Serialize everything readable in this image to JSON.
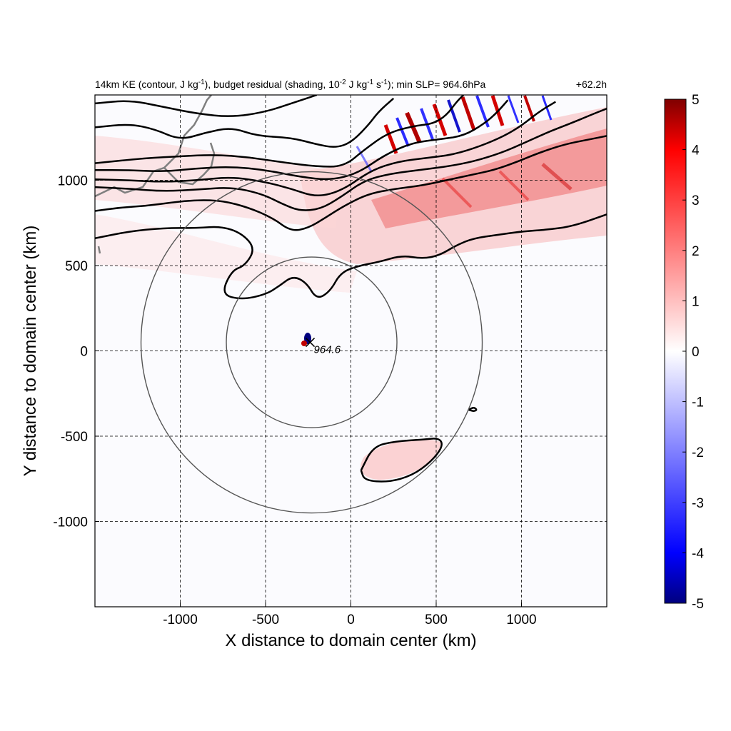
{
  "chart_data": {
    "type": "heatmap",
    "title": {
      "part1": "14km KE (contour, J kg",
      "part1_sup": "-1",
      "part2": "), budget residual (shading, 10",
      "part2_sup": "-2",
      "part3": " J kg",
      "part3_sup": "-1",
      "part4": " s",
      "part4_sup": "-1",
      "part5": "); min SLP= 964.6hPa"
    },
    "time_label": "+62.2h",
    "xlabel": "X distance to domain center (km)",
    "ylabel": "Y distance to domain center (km)",
    "xlim": [
      -1500,
      1500
    ],
    "ylim": [
      -1500,
      1500
    ],
    "xticks": [
      -1000,
      -500,
      0,
      500,
      1000
    ],
    "yticks": [
      -1000,
      -500,
      0,
      500,
      1000
    ],
    "xtick_labels": [
      "-1000",
      "-500",
      "0",
      "500",
      "1000"
    ],
    "ytick_labels": [
      "-1000",
      "-500",
      "0",
      "500",
      "1000"
    ],
    "grid": "dashed",
    "colorbar": {
      "min": -5,
      "max": 5,
      "ticks": [
        5,
        4,
        3,
        2,
        1,
        0,
        -1,
        -2,
        -3,
        -4,
        -5
      ],
      "tick_labels": [
        "5",
        "4",
        "3",
        "2",
        "1",
        "0",
        "-1",
        "-2",
        "-3",
        "-4",
        "-5"
      ],
      "colors": {
        "low": "#00007f",
        "mid_low": "#0000ff",
        "zero": "#ffffff",
        "mid_high": "#ff0000",
        "high": "#7f0000"
      }
    },
    "storm_center": {
      "x": -230,
      "y": 50,
      "min_slp": "964.6"
    },
    "range_rings_km": [
      500,
      1000
    ],
    "contours": [
      {
        "name": "ke-contour-1",
        "points": [
          [
            -1500,
            1450
          ],
          [
            -1300,
            1470
          ],
          [
            -1100,
            1430
          ],
          [
            -900,
            1390
          ],
          [
            -700,
            1370
          ],
          [
            -500,
            1400
          ],
          [
            -320,
            1460
          ],
          [
            -200,
            1500
          ]
        ]
      },
      {
        "name": "ke-contour-2",
        "points": [
          [
            -1500,
            1310
          ],
          [
            -1300,
            1330
          ],
          [
            -1150,
            1300
          ],
          [
            -1000,
            1235
          ],
          [
            -850,
            1280
          ],
          [
            -700,
            1310
          ],
          [
            -550,
            1260
          ],
          [
            -350,
            1250
          ],
          [
            -200,
            1210
          ],
          [
            -90,
            1190
          ],
          [
            0,
            1220
          ],
          [
            100,
            1320
          ],
          [
            160,
            1400
          ],
          [
            250,
            1480
          ]
        ]
      },
      {
        "name": "ke-contour-3",
        "points": [
          [
            -1500,
            1100
          ],
          [
            -1200,
            1130
          ],
          [
            -1000,
            1140
          ],
          [
            -800,
            1150
          ],
          [
            -600,
            1135
          ],
          [
            -400,
            1105
          ],
          [
            -200,
            1080
          ],
          [
            -40,
            1080
          ],
          [
            80,
            1180
          ],
          [
            220,
            1280
          ],
          [
            380,
            1320
          ],
          [
            480,
            1330
          ],
          [
            560,
            1380
          ],
          [
            620,
            1460
          ],
          [
            660,
            1500
          ]
        ]
      },
      {
        "name": "ke-contour-4",
        "points": [
          [
            -1500,
            1060
          ],
          [
            -1300,
            1060
          ],
          [
            -1100,
            1050
          ],
          [
            -900,
            1070
          ],
          [
            -700,
            1080
          ],
          [
            -500,
            1060
          ],
          [
            -300,
            1020
          ],
          [
            -120,
            1000
          ],
          [
            40,
            1040
          ],
          [
            200,
            1150
          ],
          [
            360,
            1220
          ],
          [
            520,
            1240
          ],
          [
            660,
            1260
          ],
          [
            780,
            1330
          ],
          [
            860,
            1400
          ],
          [
            920,
            1470
          ]
        ]
      },
      {
        "name": "ke-contour-5",
        "points": [
          [
            -1500,
            1005
          ],
          [
            -1300,
            1000
          ],
          [
            -1100,
            990
          ],
          [
            -900,
            1000
          ],
          [
            -700,
            1020
          ],
          [
            -500,
            990
          ],
          [
            -350,
            950
          ],
          [
            -200,
            900
          ],
          [
            -50,
            940
          ],
          [
            120,
            1060
          ],
          [
            280,
            1110
          ],
          [
            440,
            1130
          ],
          [
            600,
            1150
          ],
          [
            760,
            1200
          ],
          [
            900,
            1260
          ],
          [
            1000,
            1320
          ],
          [
            1100,
            1400
          ],
          [
            1200,
            1460
          ]
        ]
      },
      {
        "name": "ke-contour-6",
        "points": [
          [
            -1500,
            960
          ],
          [
            -1300,
            950
          ],
          [
            -1100,
            935
          ],
          [
            -900,
            945
          ],
          [
            -700,
            960
          ],
          [
            -520,
            920
          ],
          [
            -400,
            860
          ],
          [
            -300,
            820
          ],
          [
            -180,
            830
          ],
          [
            -60,
            900
          ],
          [
            80,
            1000
          ],
          [
            240,
            1040
          ],
          [
            400,
            1060
          ],
          [
            560,
            1080
          ],
          [
            720,
            1110
          ],
          [
            880,
            1160
          ],
          [
            1020,
            1220
          ],
          [
            1150,
            1280
          ],
          [
            1280,
            1330
          ],
          [
            1400,
            1380
          ],
          [
            1500,
            1420
          ]
        ]
      },
      {
        "name": "ke-contour-7",
        "points": [
          [
            -1500,
            820
          ],
          [
            -1350,
            840
          ],
          [
            -1200,
            850
          ],
          [
            -1050,
            870
          ],
          [
            -900,
            885
          ],
          [
            -750,
            880
          ],
          [
            -600,
            840
          ],
          [
            -460,
            780
          ],
          [
            -350,
            700
          ],
          [
            -250,
            720
          ],
          [
            -150,
            780
          ],
          [
            -40,
            850
          ],
          [
            100,
            920
          ],
          [
            260,
            950
          ],
          [
            420,
            970
          ],
          [
            560,
            1000
          ],
          [
            700,
            1030
          ],
          [
            840,
            1060
          ],
          [
            980,
            1110
          ],
          [
            1100,
            1160
          ],
          [
            1250,
            1210
          ],
          [
            1400,
            1240
          ],
          [
            1500,
            1260
          ]
        ]
      },
      {
        "name": "ke-contour-8",
        "points": [
          [
            -1500,
            660
          ],
          [
            -1300,
            700
          ],
          [
            -1100,
            720
          ],
          [
            -900,
            720
          ],
          [
            -760,
            730
          ],
          [
            -640,
            690
          ],
          [
            -560,
            600
          ],
          [
            -620,
            500
          ],
          [
            -700,
            470
          ],
          [
            -760,
            330
          ],
          [
            -640,
            300
          ],
          [
            -500,
            330
          ],
          [
            -420,
            380
          ],
          [
            -340,
            440
          ],
          [
            -260,
            400
          ],
          [
            -200,
            300
          ],
          [
            -120,
            350
          ],
          [
            -60,
            460
          ],
          [
            50,
            500
          ],
          [
            160,
            520
          ],
          [
            300,
            560
          ],
          [
            420,
            540
          ],
          [
            520,
            560
          ],
          [
            620,
            620
          ],
          [
            720,
            660
          ],
          [
            860,
            680
          ],
          [
            1000,
            700
          ],
          [
            1150,
            710
          ],
          [
            1300,
            730
          ],
          [
            1500,
            800
          ]
        ]
      },
      {
        "name": "ke-contour-9",
        "points": [
          [
            60,
            -700
          ],
          [
            130,
            -560
          ],
          [
            260,
            -530
          ],
          [
            420,
            -520
          ],
          [
            520,
            -510
          ],
          [
            540,
            -560
          ],
          [
            470,
            -650
          ],
          [
            360,
            -730
          ],
          [
            220,
            -770
          ],
          [
            80,
            -760
          ],
          [
            60,
            -700
          ]
        ]
      },
      {
        "name": "ke-contour-10",
        "points": [
          [
            690,
            -345
          ],
          [
            720,
            -355
          ],
          [
            740,
            -345
          ],
          [
            720,
            -330
          ],
          [
            690,
            -345
          ]
        ]
      }
    ]
  }
}
